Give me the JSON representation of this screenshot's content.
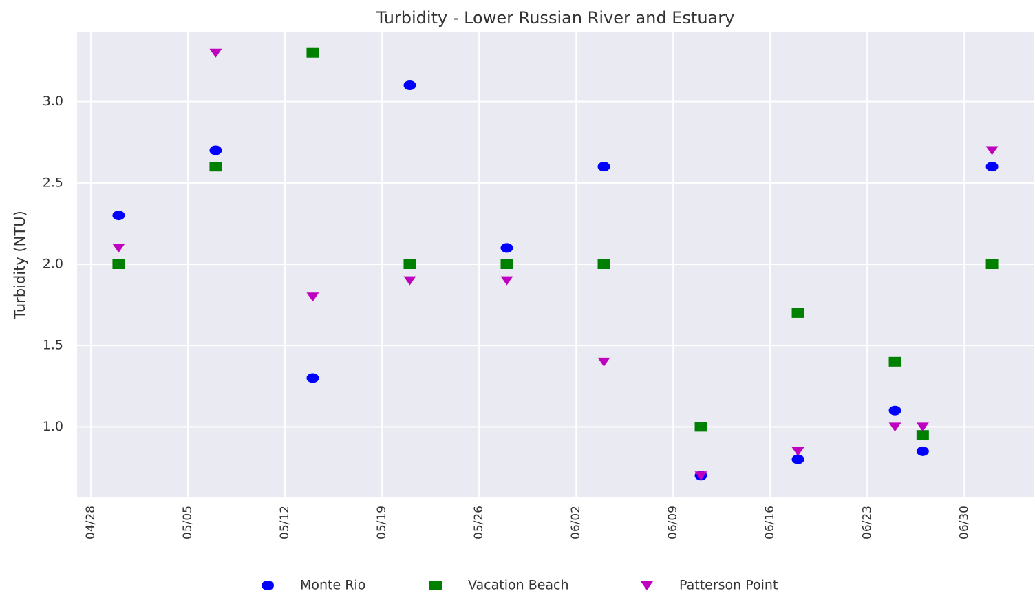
{
  "chart_data": {
    "type": "scatter",
    "title": "Turbidity - Lower Russian River and Estuary",
    "ylabel": "Turbidity (NTU)",
    "xlim": [
      "04/27",
      "07/05"
    ],
    "xticks": [
      "04/28",
      "05/05",
      "05/12",
      "05/19",
      "05/26",
      "06/02",
      "06/09",
      "06/16",
      "06/23",
      "06/30"
    ],
    "ylim": [
      0.57,
      3.43
    ],
    "yticks": [
      {
        "value": 1,
        "label": "1.0"
      },
      1.5,
      {
        "value": 2,
        "label": "2.0"
      },
      2.5,
      {
        "value": 3,
        "label": "3.0"
      }
    ],
    "grid": true,
    "legend": "bottom",
    "x": [
      "04/30",
      "05/07",
      "05/14",
      "05/21",
      "05/28",
      "06/04",
      "06/11",
      "06/18",
      "06/25",
      "06/27",
      "07/02"
    ],
    "series": [
      {
        "name": "Monte Rio",
        "color": "#0000ff",
        "marker": "circle",
        "values": [
          2.3,
          2.7,
          1.3,
          3.1,
          2.1,
          2.6,
          0.7,
          0.8,
          1.1,
          0.85,
          2.6
        ]
      },
      {
        "name": "Vacation Beach",
        "color": "#008000",
        "marker": "square",
        "values": [
          2.0,
          2.6,
          3.3,
          2.0,
          2.0,
          2.0,
          1.0,
          1.7,
          1.4,
          0.95,
          2.0
        ]
      },
      {
        "name": "Patterson Point",
        "color": "#bf00bf",
        "marker": "triangle-down",
        "values": [
          2.1,
          3.3,
          1.8,
          1.9,
          1.9,
          1.4,
          0.7,
          0.85,
          1.0,
          1.0,
          2.7
        ]
      }
    ]
  }
}
